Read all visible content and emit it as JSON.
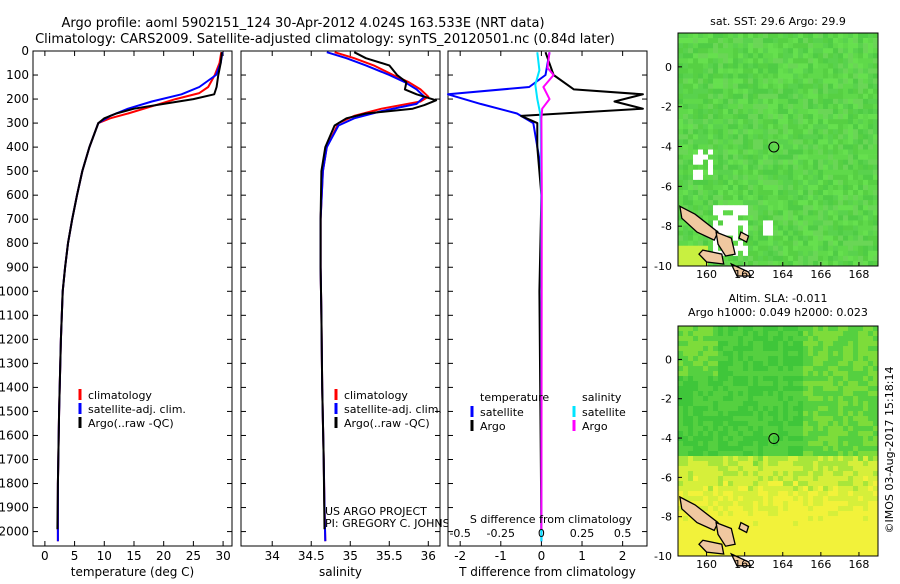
{
  "header": {
    "line1": "Argo profile: aoml 5902151_124 30-Apr-2012 4.024S 163.533E (NRT data)",
    "line2": "Climatology: CARS2009. Satellite-adjusted climatology: synTS_20120501.nc (0.84d later)"
  },
  "colors": {
    "climatology": "#ff0000",
    "satellite": "#0000ff",
    "argo": "#000000",
    "sat_salinity": "#00e5ff",
    "argo_salinity": "#ff00ff"
  },
  "chart_data": [
    {
      "type": "line",
      "name": "temperature-profile",
      "xlabel": "temperature (deg C)",
      "ylabel": "",
      "xlim": [
        -2,
        31.5
      ],
      "ylim": [
        2060,
        0
      ],
      "xticks": [
        "0",
        "5",
        "10",
        "15",
        "20",
        "25",
        "30"
      ],
      "xtick_values": [
        0,
        5,
        10,
        15,
        20,
        25,
        30
      ],
      "yticks": [
        "0",
        "100",
        "200",
        "300",
        "400",
        "500",
        "600",
        "700",
        "800",
        "900",
        "1000",
        "1100",
        "1200",
        "1300",
        "1400",
        "1500",
        "1600",
        "1700",
        "1800",
        "1900",
        "2000"
      ],
      "ytick_values": [
        0,
        100,
        200,
        300,
        400,
        500,
        600,
        700,
        800,
        900,
        1000,
        1100,
        1200,
        1300,
        1400,
        1500,
        1600,
        1700,
        1800,
        1900,
        2000
      ],
      "legend": [
        "climatology",
        "satellite-adj. clim.",
        "Argo(..raw -QC)"
      ],
      "series": [
        {
          "name": "climatology",
          "color": "#ff0000",
          "x": [
            29.7,
            29.4,
            28.6,
            27.5,
            26,
            22,
            18,
            14,
            11,
            9,
            7.5,
            6.3,
            5.4,
            4.6,
            3.9,
            3.4,
            3,
            2.7,
            2.4,
            2.2,
            2.2
          ],
          "y": [
            5,
            50,
            100,
            150,
            175,
            200,
            230,
            260,
            280,
            300,
            400,
            500,
            600,
            700,
            800,
            900,
            1000,
            1200,
            1500,
            1800,
            2040
          ]
        },
        {
          "name": "satellite",
          "color": "#0000ff",
          "x": [
            29.9,
            29.6,
            28.8,
            26,
            23,
            18,
            14,
            11,
            9,
            7.5,
            6.3,
            5.4,
            4.6,
            3.9,
            3.4,
            3,
            2.7,
            2.4,
            2.2,
            2.2
          ],
          "y": [
            5,
            50,
            100,
            150,
            180,
            210,
            240,
            270,
            300,
            400,
            500,
            600,
            700,
            800,
            900,
            1000,
            1200,
            1500,
            1800,
            2040
          ]
        },
        {
          "name": "argo",
          "color": "#000000",
          "x": [
            29.8,
            29.6,
            29.2,
            28.9,
            28.5,
            25,
            20,
            15,
            12,
            10,
            9,
            7.5,
            6.3,
            5.4,
            4.6,
            3.9,
            3.4,
            3,
            2.7,
            2.4,
            2.2,
            2.1
          ],
          "y": [
            5,
            50,
            100,
            150,
            180,
            200,
            220,
            240,
            260,
            280,
            300,
            400,
            500,
            600,
            700,
            800,
            900,
            1000,
            1200,
            1500,
            1800,
            1990
          ]
        }
      ]
    },
    {
      "type": "line",
      "name": "salinity-profile",
      "xlabel": "salinity",
      "xlim": [
        33.6,
        36.15
      ],
      "ylim": [
        2060,
        0
      ],
      "xticks": [
        "34",
        "34.5",
        "35",
        "35.5",
        "36"
      ],
      "xtick_values": [
        34,
        34.5,
        35,
        35.5,
        36
      ],
      "legend": [
        "climatology",
        "satellite-adj. clim.",
        "Argo(..raw -QC)"
      ],
      "annotations": [
        "US ARGO PROJECT",
        "PI: GREGORY C. JOHNSON"
      ],
      "series": [
        {
          "name": "climatology",
          "color": "#ff0000",
          "x": [
            34.8,
            35.05,
            35.3,
            35.55,
            35.75,
            35.9,
            36.0,
            35.9,
            35.4,
            35.05,
            34.85,
            34.7,
            34.65,
            34.62,
            34.62,
            34.63,
            34.64,
            34.66,
            34.67,
            34.68
          ],
          "y": [
            5,
            30,
            60,
            100,
            130,
            160,
            190,
            210,
            240,
            270,
            300,
            400,
            500,
            700,
            900,
            1100,
            1400,
            1700,
            1900,
            2040
          ]
        },
        {
          "name": "satellite",
          "color": "#0000ff",
          "x": [
            34.7,
            34.95,
            35.2,
            35.5,
            35.7,
            35.85,
            35.95,
            35.85,
            35.4,
            35.05,
            34.85,
            34.7,
            34.65,
            34.62,
            34.62,
            34.63,
            34.64,
            34.66,
            34.67,
            34.68
          ],
          "y": [
            5,
            30,
            60,
            100,
            130,
            160,
            190,
            220,
            250,
            280,
            310,
            400,
            500,
            700,
            900,
            1100,
            1400,
            1700,
            1900,
            2040
          ]
        },
        {
          "name": "argo",
          "color": "#000000",
          "x": [
            35.05,
            35.2,
            35.5,
            35.6,
            35.72,
            35.7,
            35.85,
            36.1,
            35.95,
            35.8,
            35.2,
            34.95,
            34.8,
            34.68,
            34.63,
            34.62,
            34.62,
            34.63,
            34.64,
            34.66,
            34.67
          ],
          "y": [
            5,
            30,
            60,
            100,
            130,
            160,
            180,
            205,
            225,
            240,
            260,
            280,
            310,
            400,
            500,
            700,
            900,
            1100,
            1400,
            1700,
            1990
          ]
        }
      ]
    },
    {
      "type": "line",
      "name": "difference-profile",
      "xlabel": "T difference from climatology",
      "xlabel_top": "S difference from climatology",
      "xlim": [
        -2.3,
        2.6
      ],
      "ylim": [
        2060,
        0
      ],
      "xticks": [
        "-2",
        "-1",
        "0",
        "1",
        "2"
      ],
      "xtick_values": [
        -2,
        -1,
        0,
        1,
        2
      ],
      "xticks_top": [
        "-0.5",
        "-0.25",
        "0",
        "0.25",
        "0.5"
      ],
      "xtick_top_values": [
        -0.5,
        -0.25,
        0,
        0.25,
        0.5
      ],
      "legend_headers": [
        "temperature",
        "salinity"
      ],
      "legend": [
        "satellite",
        "Argo",
        "satellite",
        "Argo"
      ],
      "series": [
        {
          "name": "T satellite",
          "color": "#0000ff",
          "x": [
            0.2,
            0.1,
            -0.3,
            -2.3,
            -1.5,
            -0.6,
            -0.2,
            0,
            0,
            0
          ],
          "y": [
            5,
            100,
            150,
            180,
            220,
            260,
            300,
            500,
            1000,
            2040
          ]
        },
        {
          "name": "T Argo",
          "color": "#000000",
          "x": [
            0.1,
            0.3,
            0.8,
            2.5,
            1.8,
            2.5,
            -0.5,
            -0.1,
            -0.1,
            0,
            -0.05,
            0
          ],
          "y": [
            5,
            100,
            160,
            180,
            210,
            240,
            270,
            300,
            400,
            600,
            1000,
            1990
          ]
        },
        {
          "name": "S satellite",
          "color": "#00e5ff",
          "x": [
            -0.1,
            -0.05,
            -0.15,
            -0.1,
            -0.03,
            -0.02,
            0,
            0
          ],
          "y": [
            5,
            80,
            140,
            200,
            260,
            300,
            600,
            2040
          ]
        },
        {
          "name": "S Argo",
          "color": "#ff00ff",
          "x": [
            0.2,
            0.15,
            0.3,
            0.05,
            0.2,
            0.02,
            0,
            0.01,
            0
          ],
          "y": [
            5,
            70,
            100,
            150,
            200,
            240,
            280,
            600,
            1990
          ]
        }
      ]
    },
    {
      "type": "heatmap",
      "name": "sst-map",
      "title": "sat. SST: 29.6 Argo: 29.9",
      "xlim": [
        158.5,
        169
      ],
      "ylim": [
        -10,
        1.7
      ],
      "xticks": [
        "160",
        "162",
        "164",
        "166",
        "168"
      ],
      "xtick_values": [
        160,
        162,
        164,
        166,
        168
      ],
      "yticks": [
        "0",
        "-2",
        "-4",
        "-6",
        "-8",
        "-10"
      ],
      "ytick_values": [
        0,
        -2,
        -4,
        -6,
        -8,
        -10
      ],
      "marker": {
        "lon": 163.533,
        "lat": -4.024
      }
    },
    {
      "type": "heatmap",
      "name": "sla-map",
      "title": "Altim. SLA: -0.011",
      "subtitle": "Argo h1000: 0.049 h2000: 0.023",
      "xlim": [
        158.5,
        169
      ],
      "ylim": [
        -10,
        1.7
      ],
      "xticks": [
        "160",
        "162",
        "164",
        "166",
        "168"
      ],
      "xtick_values": [
        160,
        162,
        164,
        166,
        168
      ],
      "yticks": [
        "0",
        "-2",
        "-4",
        "-6",
        "-8",
        "-10"
      ],
      "ytick_values": [
        0,
        -2,
        -4,
        -6,
        -8,
        -10
      ],
      "marker": {
        "lon": 163.533,
        "lat": -4.024
      }
    }
  ],
  "side_label": "©IMOS 03-Aug-2017 15:18:14"
}
